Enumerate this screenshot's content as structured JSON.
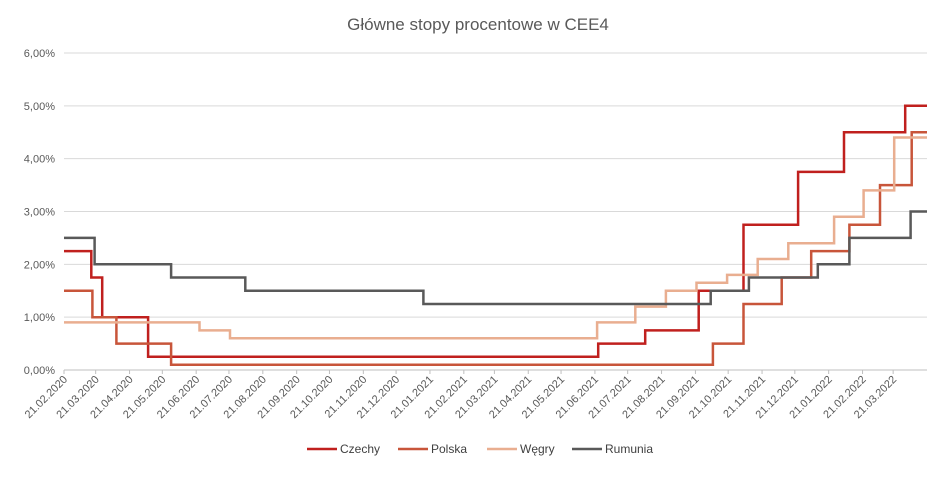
{
  "chart_data": {
    "type": "line",
    "title": "Główne stopy procentowe w CEE4",
    "xlabel": "",
    "ylabel": "",
    "ylim": [
      0,
      6
    ],
    "y_ticks": [
      "0,00%",
      "1,00%",
      "2,00%",
      "3,00%",
      "4,00%",
      "5,00%",
      "6,00%"
    ],
    "x_range": [
      "2020-02-21",
      "2022-04-21"
    ],
    "x_ticks": [
      "21.02.2020",
      "21.03.2020",
      "21.04.2020",
      "21.05.2020",
      "21.06.2020",
      "21.07.2020",
      "21.08.2020",
      "21.09.2020",
      "21.10.2020",
      "21.11.2020",
      "21.12.2020",
      "21.01.2021",
      "21.02.2021",
      "21.03.2021",
      "21.04.2021",
      "21.05.2021",
      "21.06.2021",
      "21.07.2021",
      "21.08.2021",
      "21.09.2021",
      "21.10.2021",
      "21.11.2021",
      "21.12.2021",
      "21.01.2022",
      "21.02.2022",
      "21.03.2022"
    ],
    "grid": true,
    "legend_position": "bottom",
    "series": [
      {
        "name": "Czechy",
        "color": "#c0201e",
        "steps": [
          [
            "2020-02-21",
            2.25
          ],
          [
            "2020-03-17",
            1.75
          ],
          [
            "2020-03-27",
            1.0
          ],
          [
            "2020-05-08",
            0.25
          ],
          [
            "2021-06-24",
            0.5
          ],
          [
            "2021-08-06",
            0.75
          ],
          [
            "2021-09-24",
            1.5
          ],
          [
            "2021-11-04",
            2.75
          ],
          [
            "2021-12-24",
            3.75
          ],
          [
            "2022-02-04",
            4.5
          ],
          [
            "2022-04-01",
            5.0
          ],
          [
            "2022-04-21",
            5.0
          ]
        ]
      },
      {
        "name": "Polska",
        "color": "#c8553a",
        "steps": [
          [
            "2020-02-21",
            1.5
          ],
          [
            "2020-03-18",
            1.0
          ],
          [
            "2020-04-09",
            0.5
          ],
          [
            "2020-05-29",
            0.1
          ],
          [
            "2021-10-07",
            0.5
          ],
          [
            "2021-11-04",
            1.25
          ],
          [
            "2021-12-09",
            1.75
          ],
          [
            "2022-01-05",
            2.25
          ],
          [
            "2022-02-09",
            2.75
          ],
          [
            "2022-03-09",
            3.5
          ],
          [
            "2022-04-07",
            4.5
          ],
          [
            "2022-04-21",
            4.5
          ]
        ]
      },
      {
        "name": "Węgry",
        "color": "#e9ae90",
        "steps": [
          [
            "2020-02-21",
            0.9
          ],
          [
            "2020-06-24",
            0.75
          ],
          [
            "2020-07-22",
            0.6
          ],
          [
            "2021-06-23",
            0.9
          ],
          [
            "2021-07-28",
            1.2
          ],
          [
            "2021-08-25",
            1.5
          ],
          [
            "2021-09-22",
            1.65
          ],
          [
            "2021-10-20",
            1.8
          ],
          [
            "2021-11-17",
            2.1
          ],
          [
            "2021-12-15",
            2.4
          ],
          [
            "2022-01-26",
            2.9
          ],
          [
            "2022-02-22",
            3.4
          ],
          [
            "2022-03-22",
            4.4
          ],
          [
            "2022-04-21",
            4.4
          ]
        ]
      },
      {
        "name": "Rumunia",
        "color": "#595959",
        "steps": [
          [
            "2020-02-21",
            2.5
          ],
          [
            "2020-03-20",
            2.0
          ],
          [
            "2020-05-29",
            1.75
          ],
          [
            "2020-08-05",
            1.5
          ],
          [
            "2021-01-15",
            1.25
          ],
          [
            "2021-10-05",
            1.5
          ],
          [
            "2021-11-09",
            1.75
          ],
          [
            "2022-01-11",
            2.0
          ],
          [
            "2022-02-09",
            2.5
          ],
          [
            "2022-04-06",
            3.0
          ],
          [
            "2022-04-21",
            3.0
          ]
        ]
      }
    ]
  }
}
